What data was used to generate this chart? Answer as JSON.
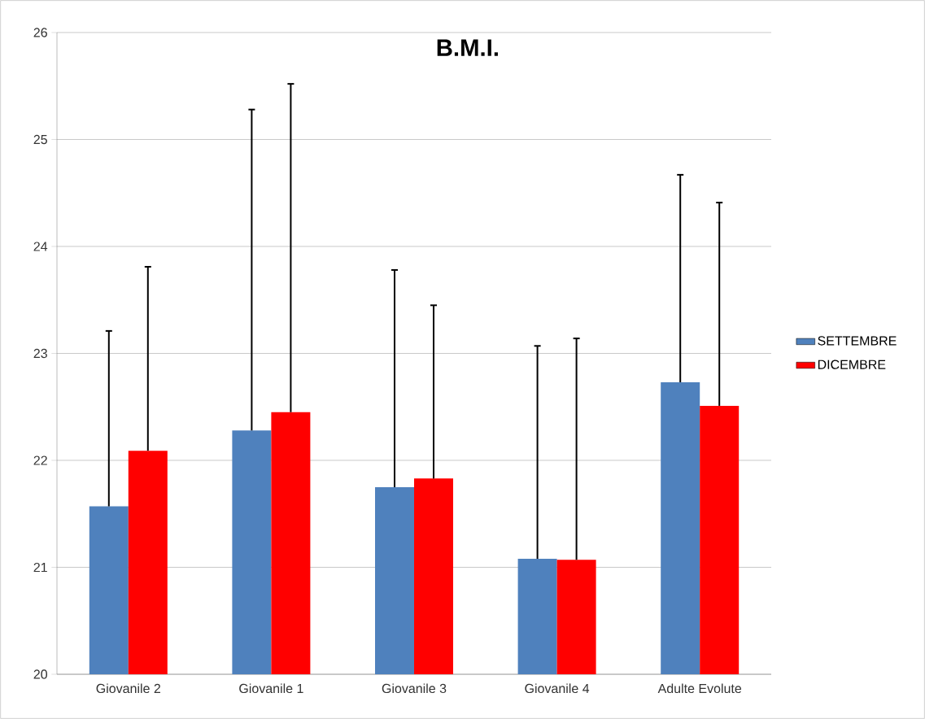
{
  "chart_data": {
    "type": "bar",
    "title": "B.M.I.",
    "categories": [
      "Giovanile 2",
      "Giovanile 1",
      "Giovanile 3",
      "Giovanile 4",
      "Adulte Evolute"
    ],
    "series": [
      {
        "name": "SETTEMBRE",
        "color": "#4f81bd",
        "values": [
          21.57,
          22.28,
          21.75,
          21.08,
          22.73
        ],
        "errors": [
          [
            21.57,
            23.21
          ],
          [
            22.28,
            25.28
          ],
          [
            21.75,
            23.78
          ],
          [
            21.08,
            23.07
          ],
          [
            22.73,
            24.67
          ]
        ]
      },
      {
        "name": "DICEMBRE",
        "color": "#ff0000",
        "values": [
          22.09,
          22.45,
          21.83,
          21.07,
          22.51
        ],
        "errors": [
          [
            22.09,
            23.81
          ],
          [
            22.45,
            25.52
          ],
          [
            21.83,
            23.45
          ],
          [
            21.07,
            23.14
          ],
          [
            22.51,
            24.41
          ]
        ]
      }
    ],
    "ylim": [
      20,
      26
    ],
    "yticks": [
      20,
      21,
      22,
      23,
      24,
      25,
      26
    ],
    "grid": "y",
    "legend": "right"
  }
}
